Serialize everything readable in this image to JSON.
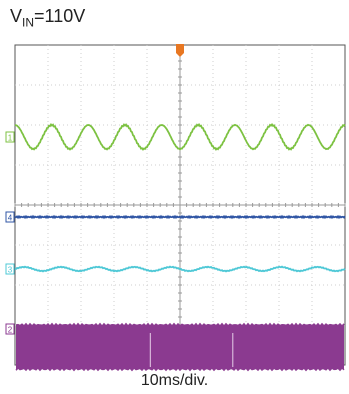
{
  "header": {
    "vin_symbol": "V",
    "vin_subscript": "IN",
    "vin_value": "=110V"
  },
  "footer": {
    "time_div": "10ms/div."
  },
  "colors": {
    "ch1": "#7dc242",
    "ch4": "#2f55a4",
    "ch3": "#4ec8d6",
    "ch2": "#8b3a90",
    "trigger": "#e87722",
    "grid": "#cfcfcf",
    "frame": "#555555"
  },
  "chart_data": {
    "type": "line",
    "title": "",
    "xlabel": "10ms/div.",
    "ylabel": "",
    "x_divisions": 10,
    "y_divisions": 8,
    "time_per_div_ms": 10,
    "grid": true,
    "series": [
      {
        "marker": "1",
        "shape": "sine",
        "cycles": 9,
        "center_div": 2.3,
        "amplitude_div": 0.3
      },
      {
        "marker": "4",
        "shape": "flat",
        "center_div": 4.3,
        "amplitude_div": 0.02
      },
      {
        "marker": "3",
        "shape": "ripple",
        "cycles": 9,
        "center_div": 5.6,
        "amplitude_div": 0.05
      },
      {
        "marker": "2",
        "shape": "dense-band",
        "top_div": 7.0,
        "bottom_div": 8.1
      }
    ],
    "trigger_position_div": 5
  }
}
